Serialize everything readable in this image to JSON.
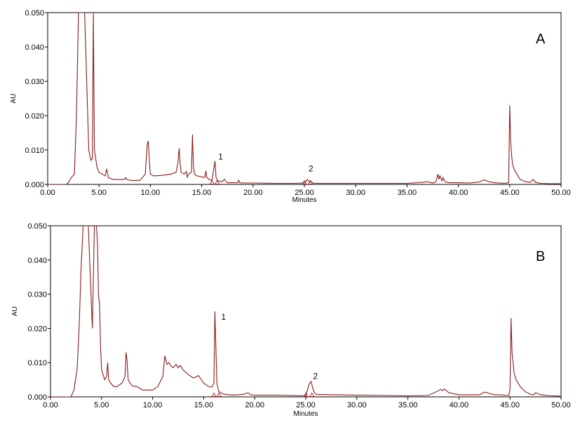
{
  "chart_data": [
    {
      "type": "line",
      "panel_label": "A",
      "xlabel": "Minutes",
      "ylabel": "AU",
      "xlim": [
        0,
        50
      ],
      "ylim": [
        0,
        0.05
      ],
      "x_ticks": [
        "0.00",
        "5.00",
        "10.00",
        "15.00",
        "20.00",
        "25.00",
        "30.00",
        "35.00",
        "40.00",
        "45.00",
        "50.00"
      ],
      "y_ticks": [
        "0.000",
        "0.010",
        "0.020",
        "0.030",
        "0.040",
        "0.050"
      ],
      "line_color": "#8b1a1a",
      "grid": false,
      "series": [
        {
          "x": [
            0,
            1.8,
            2.0,
            2.3,
            2.6,
            2.8,
            3.0,
            3.1,
            3.2,
            3.4,
            3.6,
            3.8,
            4.0,
            4.2,
            4.35,
            4.45,
            4.55,
            4.8,
            5.0,
            5.3,
            5.6,
            5.75,
            5.9,
            6.3,
            7.0,
            7.5,
            7.6,
            7.7,
            8.0,
            8.5,
            9.0,
            9.5,
            9.7,
            9.8,
            9.9,
            10.0,
            10.3,
            11.0,
            11.5,
            12.0,
            12.5,
            12.7,
            12.8,
            12.9,
            13.0,
            13.3,
            13.5,
            13.6,
            13.7,
            14.0,
            14.1,
            14.2,
            14.3,
            14.5,
            15.0,
            15.3,
            15.4,
            15.5,
            15.7,
            16.0,
            16.2,
            16.3,
            16.4,
            16.6,
            17.0,
            17.2,
            17.5,
            18.0,
            18.5,
            18.6,
            18.7,
            19.0,
            20.0,
            22.0,
            24.0,
            25.0,
            25.3,
            25.5,
            25.8,
            26.0,
            27.0,
            30.0,
            33.0,
            35.0,
            36.5,
            37.0,
            37.5,
            37.8,
            38.0,
            38.1,
            38.2,
            38.4,
            38.5,
            38.7,
            39.0,
            40.0,
            41.0,
            42.0,
            42.5,
            43.0,
            43.5,
            44.0,
            44.5,
            44.9,
            45.0,
            45.1,
            45.2,
            45.3,
            45.5,
            45.8,
            46.0,
            46.5,
            47.0,
            47.3,
            47.5,
            48.0,
            49.0,
            50.0
          ],
          "y": [
            0,
            0,
            0.0005,
            0.002,
            0.003,
            0.02,
            0.05,
            0.05,
            0.05,
            0.05,
            0.05,
            0.03,
            0.01,
            0.007,
            0.0075,
            0.05,
            0.01,
            0.005,
            0.0035,
            0.003,
            0.0025,
            0.0045,
            0.002,
            0.0015,
            0.0014,
            0.0015,
            0.002,
            0.0015,
            0.0012,
            0.0011,
            0.0012,
            0.003,
            0.012,
            0.0125,
            0.007,
            0.003,
            0.0025,
            0.0026,
            0.0028,
            0.003,
            0.0035,
            0.0065,
            0.0105,
            0.006,
            0.0035,
            0.003,
            0.0038,
            0.002,
            0.003,
            0.0035,
            0.0145,
            0.005,
            0.003,
            0.0025,
            0.0022,
            0.002,
            0.004,
            0.002,
            0.0015,
            0.0012,
            0.005,
            0.0068,
            0.002,
            0.001,
            0.0008,
            0.0015,
            0.0005,
            0.0005,
            0.0005,
            0.0012,
            0.0005,
            0.0004,
            0.0004,
            0.0003,
            0.0003,
            0.0004,
            0.0014,
            0.0008,
            0.0005,
            0.0003,
            0.0003,
            0.0003,
            0.0003,
            0.0003,
            0.0006,
            0.0008,
            0.0004,
            0.0007,
            0.003,
            0.0015,
            0.0025,
            0.001,
            0.002,
            0.0008,
            0.0005,
            0.0005,
            0.0004,
            0.0007,
            0.0013,
            0.0008,
            0.0005,
            0.0004,
            0.0003,
            0.0005,
            0.023,
            0.012,
            0.008,
            0.0055,
            0.004,
            0.0025,
            0.0015,
            0.0008,
            0.0006,
            0.0015,
            0.0006,
            0.0003,
            0.0002,
            0.0002
          ]
        }
      ],
      "annotations": [
        {
          "text": "1",
          "x": 16.5,
          "y": 0.0072
        },
        {
          "text": "2",
          "x": 25.3,
          "y": 0.0038
        }
      ],
      "markers": [
        {
          "x": 16.0
        },
        {
          "x": 16.5
        },
        {
          "x": 25.0
        },
        {
          "x": 25.6
        }
      ]
    },
    {
      "type": "line",
      "panel_label": "B",
      "xlabel": "Minutes",
      "ylabel": "AU",
      "xlim": [
        0,
        50
      ],
      "ylim": [
        0,
        0.05
      ],
      "x_ticks": [
        "0.00",
        "5.00",
        "10.00",
        "15.00",
        "20.00",
        "25.00",
        "30.00",
        "35.00",
        "40.00",
        "45.00",
        "50.00"
      ],
      "y_ticks": [
        "0.000",
        "0.010",
        "0.020",
        "0.030",
        "0.040",
        "0.050"
      ],
      "line_color": "#8b1a1a",
      "grid": false,
      "series": [
        {
          "x": [
            0,
            2.0,
            2.3,
            2.6,
            2.8,
            3.0,
            3.2,
            3.5,
            3.7,
            3.9,
            4.1,
            4.3,
            4.5,
            4.6,
            4.7,
            4.8,
            4.9,
            5.0,
            5.3,
            5.5,
            5.6,
            5.7,
            5.9,
            6.2,
            6.5,
            7.0,
            7.3,
            7.4,
            7.5,
            7.6,
            7.8,
            8.0,
            8.5,
            9.0,
            9.5,
            10.0,
            10.5,
            11.0,
            11.2,
            11.4,
            11.6,
            11.8,
            12.0,
            12.3,
            12.5,
            12.7,
            13.0,
            13.5,
            14.0,
            14.5,
            15.0,
            15.5,
            15.8,
            16.0,
            16.1,
            16.2,
            16.3,
            16.4,
            16.5,
            16.8,
            17.0,
            17.5,
            18.0,
            19.0,
            19.3,
            19.6,
            20.0,
            22.0,
            25.0,
            25.3,
            25.5,
            25.8,
            26.0,
            28.0,
            30.0,
            33.0,
            35.0,
            37.0,
            38.0,
            38.2,
            38.4,
            38.6,
            39.0,
            40.0,
            41.0,
            42.0,
            42.5,
            43.0,
            43.5,
            44.0,
            44.7,
            44.9,
            45.0,
            45.1,
            45.2,
            45.4,
            45.6,
            46.0,
            46.5,
            47.0,
            47.3,
            47.5,
            48.0,
            49.0,
            50.0
          ],
          "y": [
            0,
            0,
            0.002,
            0.008,
            0.02,
            0.038,
            0.05,
            0.05,
            0.05,
            0.035,
            0.02,
            0.05,
            0.05,
            0.045,
            0.03,
            0.027,
            0.015,
            0.008,
            0.005,
            0.006,
            0.01,
            0.005,
            0.004,
            0.003,
            0.003,
            0.004,
            0.006,
            0.013,
            0.0105,
            0.005,
            0.004,
            0.0032,
            0.003,
            0.002,
            0.002,
            0.002,
            0.003,
            0.006,
            0.012,
            0.0095,
            0.01,
            0.009,
            0.0085,
            0.0095,
            0.0085,
            0.0092,
            0.0078,
            0.0065,
            0.0055,
            0.0062,
            0.004,
            0.003,
            0.0028,
            0.004,
            0.025,
            0.014,
            0.004,
            0.0025,
            0.0015,
            0.001,
            0.0008,
            0.0006,
            0.0005,
            0.0008,
            0.0012,
            0.0006,
            0.0005,
            0.0005,
            0.0003,
            0.0035,
            0.0045,
            0.0015,
            0.0007,
            0.0006,
            0.0005,
            0.0004,
            0.0003,
            0.0004,
            0.0018,
            0.0022,
            0.0018,
            0.0023,
            0.0012,
            0.0006,
            0.0006,
            0.0006,
            0.0014,
            0.001,
            0.0006,
            0.0006,
            0.0004,
            0.0004,
            0.0023,
            0.023,
            0.013,
            0.007,
            0.005,
            0.003,
            0.0015,
            0.0008,
            0.0006,
            0.0012,
            0.0006,
            0.0003,
            0.0002
          ]
        }
      ],
      "annotations": [
        {
          "text": "1",
          "x": 16.6,
          "y": 0.0225
        },
        {
          "text": "2",
          "x": 25.6,
          "y": 0.0052
        }
      ],
      "markers": [
        {
          "x": 16.0
        },
        {
          "x": 16.5
        },
        {
          "x": 25.0
        },
        {
          "x": 25.6
        }
      ]
    }
  ]
}
